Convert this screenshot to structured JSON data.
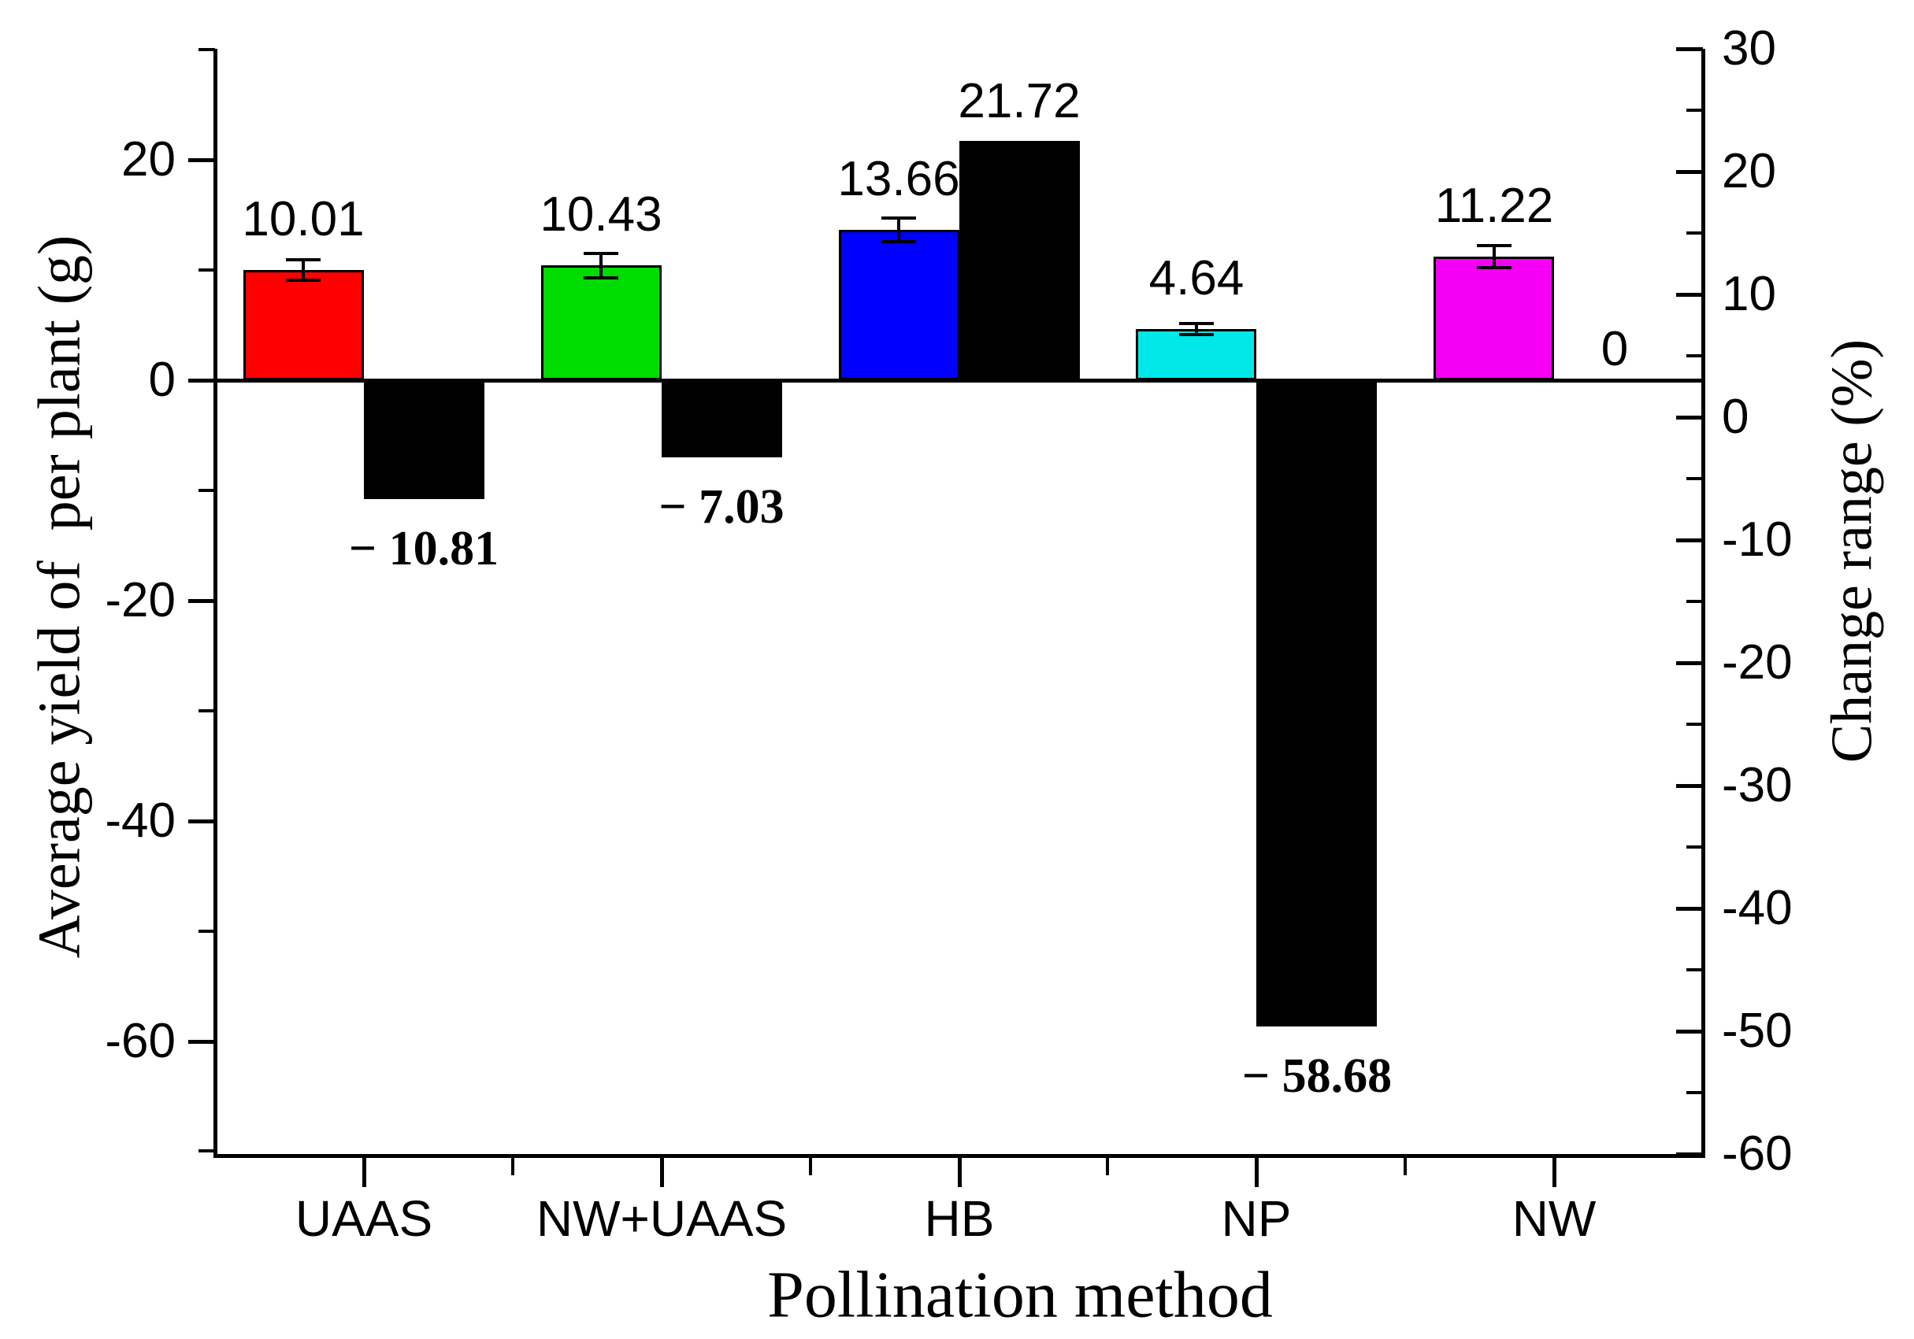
{
  "chart_data": {
    "type": "bar",
    "title": "",
    "xlabel": "Pollination method",
    "ylabel_left": "Average yield of  per plant (g)",
    "ylabel_right": "Change range (%)",
    "categories": [
      "UAAS",
      "NW+UAAS",
      "HB",
      "NP",
      "NW"
    ],
    "series": [
      {
        "name": "Average yield of per plant (g)",
        "axis": "left",
        "values": [
          10.01,
          10.43,
          13.66,
          4.64,
          11.22
        ],
        "labels": [
          "10.01",
          "10.43",
          "13.66",
          "4.64",
          "11.22"
        ],
        "errors": [
          0.9,
          1.1,
          1.1,
          0.5,
          1.0
        ],
        "colors": [
          "#fe0000",
          "#00dc00",
          "#0000fe",
          "#00e8e8",
          "#f500f5"
        ]
      },
      {
        "name": "Change range (%)",
        "axis": "left",
        "color": "#000000",
        "values": [
          -10.81,
          -7.03,
          21.72,
          -58.68,
          0
        ],
        "labels": [
          "− 10.81",
          "− 7.03",
          "21.72",
          "− 58.68",
          "0"
        ]
      }
    ],
    "left_axis": {
      "max": 30.1,
      "min": -70.4,
      "ticks_major": [
        20,
        0,
        -20,
        -40,
        -60
      ],
      "ticks_minor": [
        30,
        10,
        -10,
        -30,
        -50,
        -70
      ]
    },
    "right_axis": {
      "max": 30.0,
      "min": -60.1,
      "ticks_major": [
        30,
        20,
        10,
        0,
        -10,
        -20,
        -30,
        -40,
        -50,
        -60
      ],
      "ticks_minor": [
        25,
        15,
        5,
        -5,
        -15,
        -25,
        -35,
        -45,
        -55
      ]
    },
    "grid": false,
    "legend": false,
    "frame": {
      "top_spine": false,
      "bar_outline_color": "#000000"
    }
  }
}
